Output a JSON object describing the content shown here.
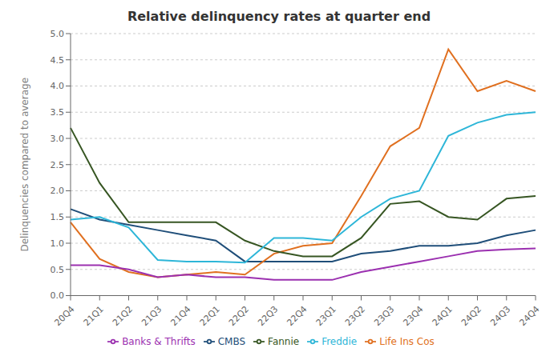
{
  "chart_data": {
    "type": "line",
    "title": "Relative delinquency rates at quarter end",
    "ylabel": "Delinquencies compared to average",
    "categories": [
      "20Q4",
      "21Q1",
      "21Q2",
      "21Q3",
      "21Q4",
      "22Q1",
      "22Q2",
      "22Q3",
      "22Q4",
      "23Q1",
      "23Q2",
      "23Q3",
      "23Q4",
      "24Q1",
      "24Q2",
      "24Q3",
      "24Q4"
    ],
    "series": [
      {
        "name": "CMBS",
        "color": "#1f4e79",
        "values": [
          1.65,
          1.45,
          1.35,
          1.25,
          1.15,
          1.05,
          0.65,
          0.65,
          0.65,
          0.65,
          0.8,
          0.85,
          0.95,
          0.95,
          1.0,
          1.15,
          1.25
        ]
      },
      {
        "name": "Life Ins Cos",
        "color": "#e07020",
        "values": [
          1.4,
          0.7,
          0.45,
          0.35,
          0.4,
          0.45,
          0.4,
          0.8,
          0.95,
          1.0,
          1.9,
          2.85,
          3.2,
          4.7,
          3.9,
          4.1,
          3.9
        ]
      },
      {
        "name": "Fannie",
        "color": "#375623",
        "values": [
          3.2,
          2.15,
          1.4,
          1.4,
          1.4,
          1.4,
          1.05,
          0.85,
          0.75,
          0.75,
          1.1,
          1.75,
          1.8,
          1.5,
          1.45,
          1.85,
          1.9
        ]
      },
      {
        "name": "Freddie",
        "color": "#2eb6d8",
        "values": [
          1.45,
          1.5,
          1.3,
          0.68,
          0.65,
          0.65,
          0.63,
          1.1,
          1.1,
          1.05,
          1.5,
          1.85,
          2.0,
          3.05,
          3.3,
          3.45,
          3.5
        ]
      },
      {
        "name": "Banks & Thrifts",
        "color": "#9b30b0",
        "values": [
          0.58,
          0.58,
          0.5,
          0.35,
          0.4,
          0.35,
          0.35,
          0.3,
          0.3,
          0.3,
          0.45,
          0.55,
          0.65,
          0.75,
          0.85,
          0.88,
          0.9
        ]
      }
    ],
    "ylim": [
      0.0,
      5.0
    ],
    "yticks": [
      {
        "value": 0,
        "label": "0.0"
      },
      0.5,
      {
        "value": 1,
        "label": "1.0"
      },
      1.5,
      {
        "value": 2,
        "label": "2.0"
      },
      2.5,
      {
        "value": 3,
        "label": "3.0"
      },
      3.5,
      {
        "value": 4,
        "label": "4.0"
      },
      4.5,
      {
        "value": 5,
        "label": "5.0"
      }
    ],
    "grid": true,
    "legend": "bottom"
  }
}
